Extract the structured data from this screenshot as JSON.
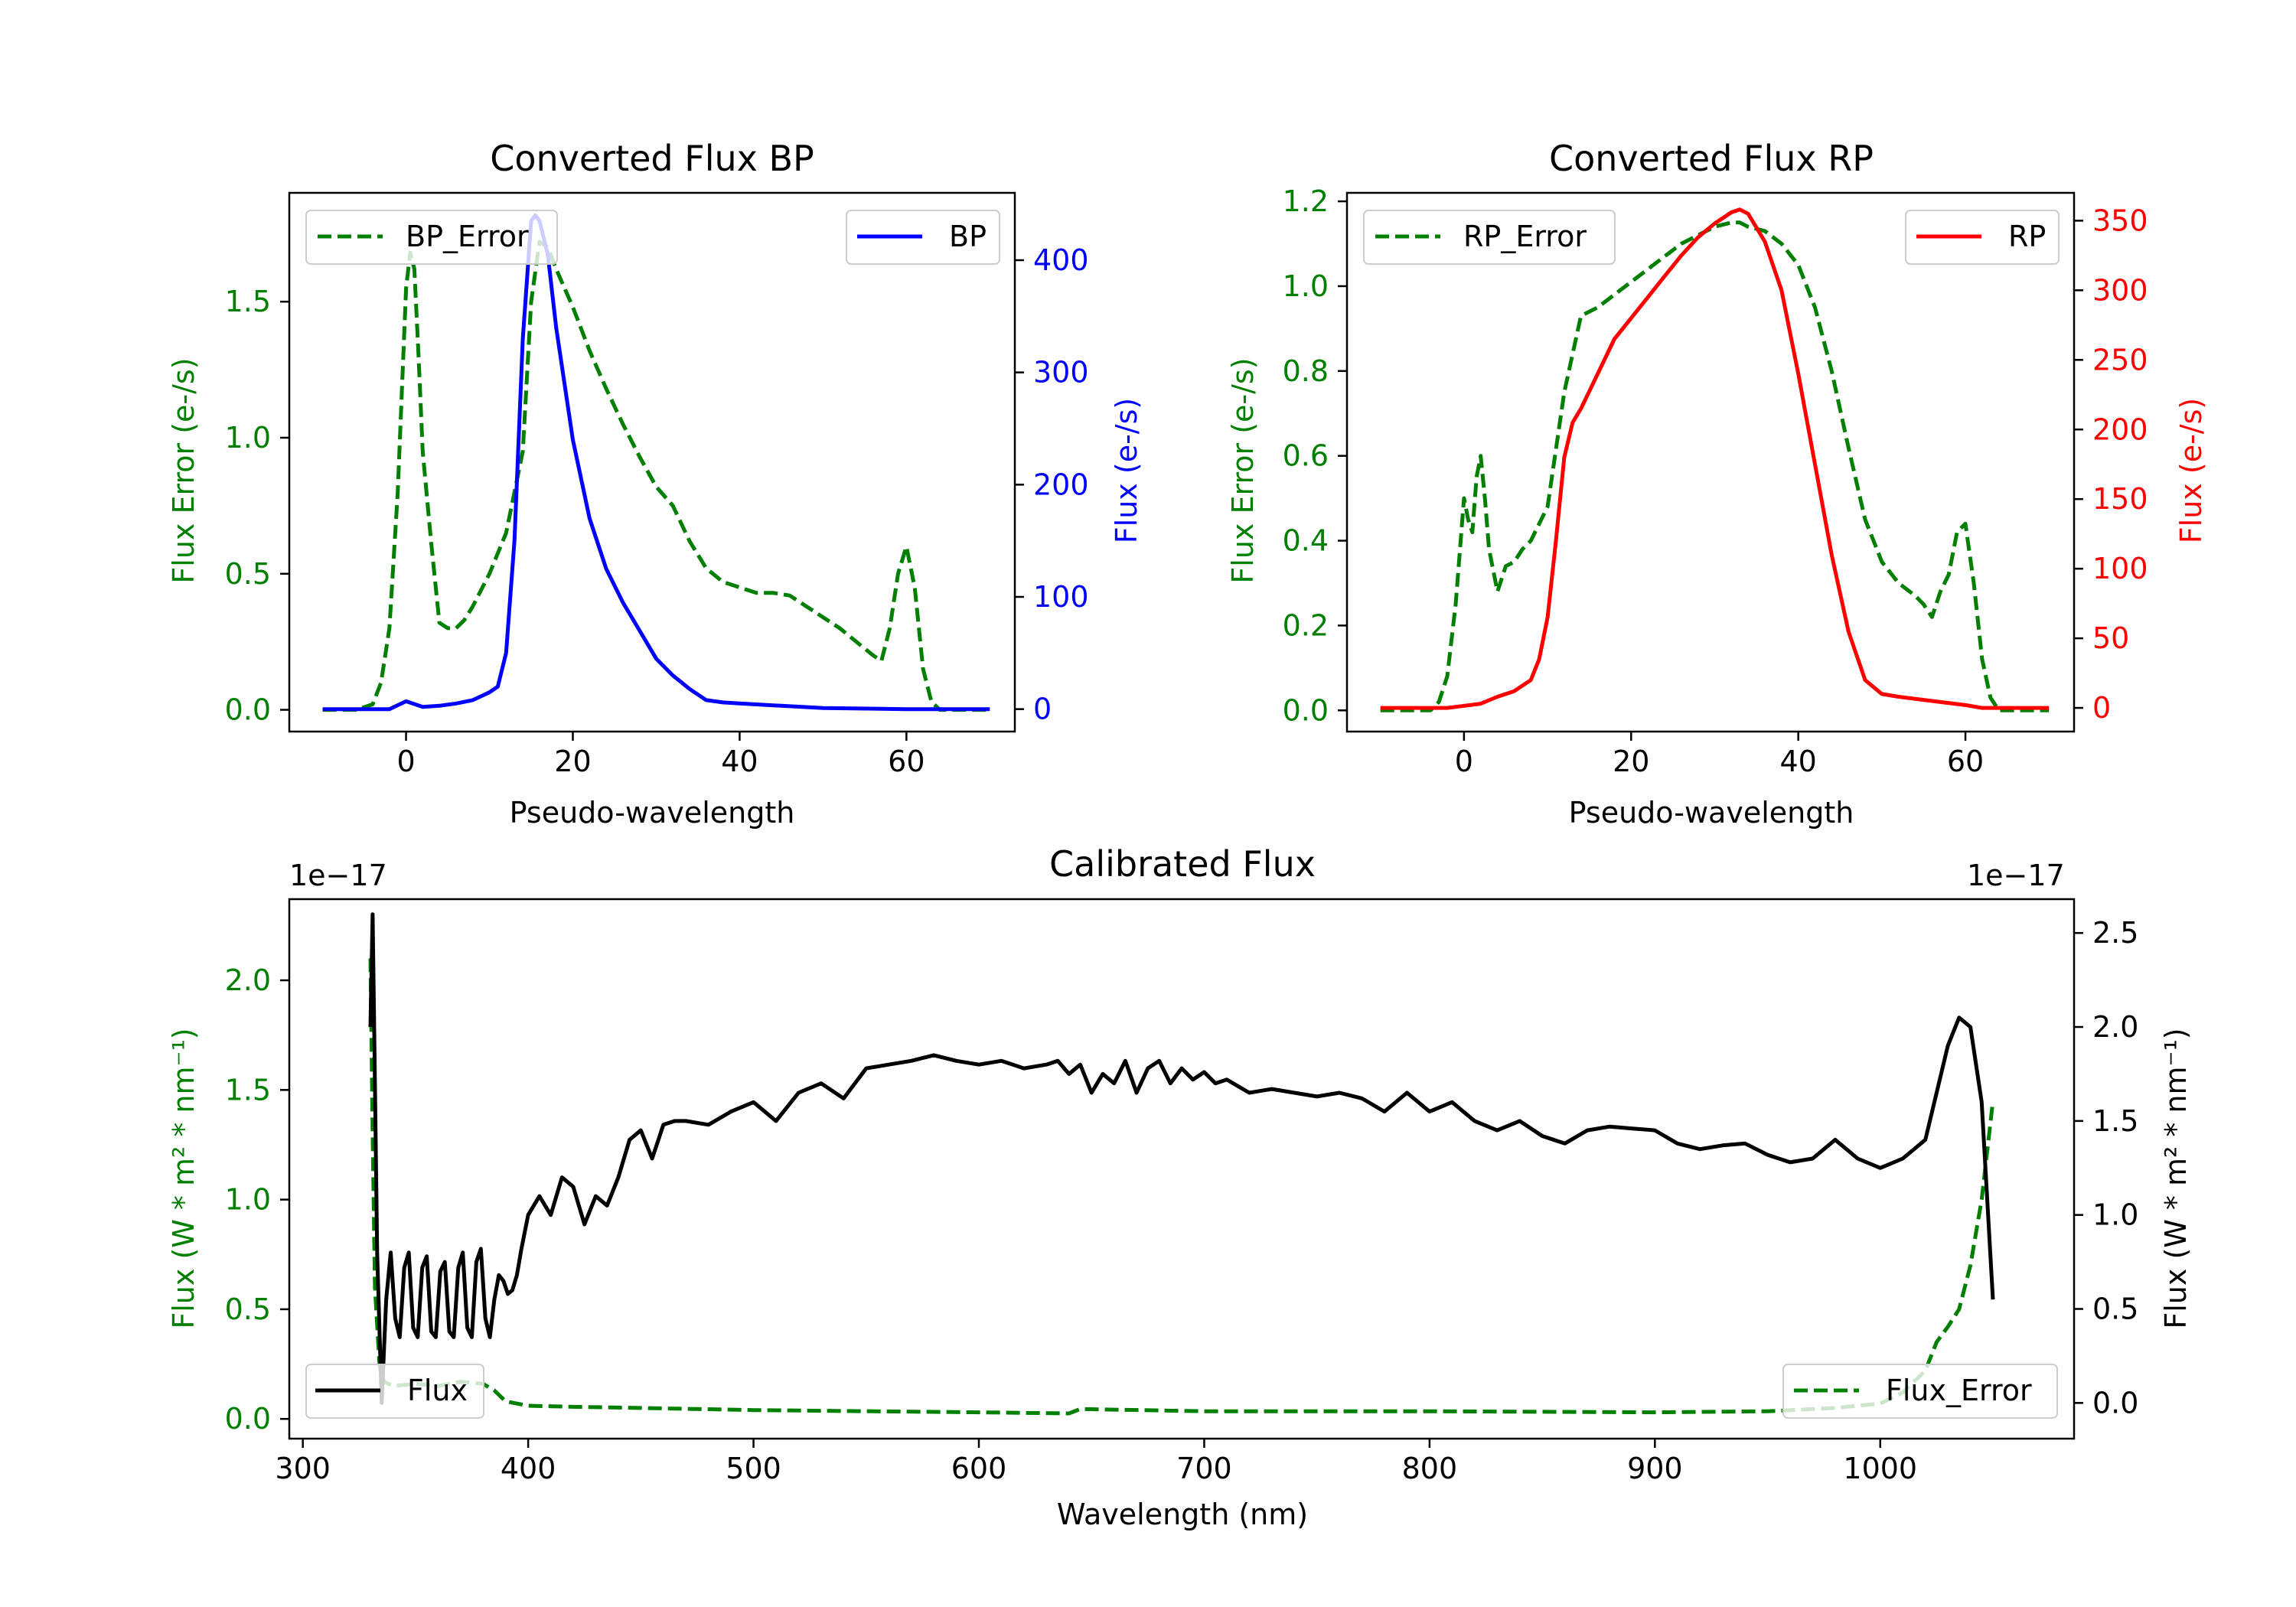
{
  "colors": {
    "bp": "#0000ff",
    "rp": "#ff0000",
    "error": "#007f00",
    "flux": "#000000",
    "frame": "#000000"
  },
  "chart_data": [
    {
      "id": "bp",
      "type": "line",
      "title": "Converted Flux BP",
      "xlabel": "Pseudo-wavelength",
      "ylabel_left": "Flux Error (e-/s)",
      "ylabel_right": "Flux (e-/s)",
      "xlim": [
        -14,
        73
      ],
      "ylim_left": [
        -0.08,
        1.9
      ],
      "ylim_right": [
        -20,
        460
      ],
      "xticks": [
        0,
        20,
        40,
        60
      ],
      "yticks_left": [
        "0.0",
        "0.5",
        "1.0",
        "1.5"
      ],
      "yticks_right": [
        "0",
        "100",
        "200",
        "300",
        "400"
      ],
      "legend_left": "BP_Error",
      "legend_right": "BP",
      "series": [
        {
          "name": "BP_Error",
          "axis": "left",
          "style": "dashed",
          "color_key": "error",
          "x": [
            -10,
            -6,
            -4,
            -3,
            -2,
            -1,
            0,
            0.5,
            1,
            1.5,
            2,
            3,
            4,
            5,
            6,
            7,
            8,
            10,
            12,
            14,
            15,
            16,
            17,
            18,
            20,
            22,
            24,
            26,
            28,
            30,
            32,
            34,
            36,
            38,
            40,
            42,
            44,
            46,
            48,
            50,
            52,
            54,
            56,
            57,
            58,
            59,
            60,
            61,
            62,
            63,
            64,
            65,
            70
          ],
          "y": [
            0.0,
            0.0,
            0.02,
            0.1,
            0.3,
            0.8,
            1.55,
            1.68,
            1.62,
            1.3,
            0.95,
            0.62,
            0.32,
            0.3,
            0.3,
            0.33,
            0.38,
            0.5,
            0.65,
            0.95,
            1.5,
            1.72,
            1.7,
            1.62,
            1.48,
            1.32,
            1.18,
            1.05,
            0.93,
            0.82,
            0.75,
            0.62,
            0.52,
            0.47,
            0.45,
            0.43,
            0.43,
            0.42,
            0.38,
            0.34,
            0.3,
            0.25,
            0.2,
            0.18,
            0.3,
            0.5,
            0.6,
            0.45,
            0.15,
            0.03,
            0.0,
            0.0,
            0.0
          ]
        },
        {
          "name": "BP",
          "axis": "right",
          "style": "solid",
          "color_key": "bp",
          "x": [
            -10,
            -2,
            0,
            2,
            4,
            6,
            8,
            10,
            11,
            12,
            13,
            14,
            15,
            15.5,
            16,
            17,
            18,
            20,
            22,
            24,
            26,
            28,
            30,
            32,
            34,
            36,
            38,
            40,
            45,
            50,
            60,
            70
          ],
          "y": [
            0,
            0,
            7,
            2,
            3,
            5,
            8,
            15,
            20,
            50,
            150,
            330,
            435,
            440,
            435,
            405,
            340,
            240,
            170,
            125,
            95,
            70,
            45,
            30,
            18,
            8,
            6,
            5,
            3,
            1,
            0,
            0
          ]
        }
      ]
    },
    {
      "id": "rp",
      "type": "line",
      "title": "Converted Flux RP",
      "xlabel": "Pseudo-wavelength",
      "ylabel_left": "Flux Error (e-/s)",
      "ylabel_right": "Flux (e-/s)",
      "xlim": [
        -14,
        73
      ],
      "ylim_left": [
        -0.05,
        1.22
      ],
      "ylim_right": [
        -17,
        370
      ],
      "xticks": [
        0,
        20,
        40,
        60
      ],
      "yticks_left": [
        "0.0",
        "0.2",
        "0.4",
        "0.6",
        "0.8",
        "1.0",
        "1.2"
      ],
      "yticks_right": [
        "0",
        "50",
        "100",
        "150",
        "200",
        "250",
        "300",
        "350"
      ],
      "legend_left": "RP_Error",
      "legend_right": "RP",
      "series": [
        {
          "name": "RP_Error",
          "axis": "left",
          "style": "dashed",
          "color_key": "error",
          "x": [
            -10,
            -4,
            -3,
            -2,
            -1,
            0,
            0.5,
            1,
            1.5,
            2,
            2.5,
            3,
            4,
            5,
            6,
            7,
            8,
            10,
            12,
            14,
            16,
            18,
            20,
            22,
            24,
            26,
            28,
            30,
            32,
            33,
            34,
            36,
            38,
            40,
            42,
            44,
            46,
            48,
            50,
            52,
            54,
            55,
            56,
            57,
            58,
            59,
            60,
            61,
            62,
            63,
            64,
            66,
            70
          ],
          "y": [
            0.0,
            0.0,
            0.02,
            0.08,
            0.25,
            0.5,
            0.45,
            0.42,
            0.55,
            0.6,
            0.5,
            0.38,
            0.28,
            0.34,
            0.35,
            0.38,
            0.4,
            0.48,
            0.75,
            0.93,
            0.95,
            0.98,
            1.01,
            1.04,
            1.07,
            1.1,
            1.12,
            1.14,
            1.15,
            1.15,
            1.14,
            1.13,
            1.1,
            1.05,
            0.95,
            0.8,
            0.62,
            0.45,
            0.35,
            0.3,
            0.27,
            0.25,
            0.22,
            0.28,
            0.32,
            0.42,
            0.44,
            0.3,
            0.12,
            0.03,
            0.0,
            0.0,
            0.0
          ]
        },
        {
          "name": "RP",
          "axis": "right",
          "style": "solid",
          "color_key": "rp",
          "x": [
            -10,
            -2,
            2,
            4,
            6,
            8,
            9,
            10,
            11,
            12,
            13,
            14,
            16,
            18,
            20,
            22,
            24,
            26,
            28,
            30,
            32,
            33,
            34,
            36,
            38,
            40,
            42,
            44,
            46,
            48,
            50,
            52,
            56,
            60,
            62,
            70
          ],
          "y": [
            0,
            0,
            3,
            8,
            12,
            20,
            35,
            65,
            120,
            180,
            205,
            215,
            240,
            265,
            280,
            295,
            310,
            325,
            338,
            348,
            356,
            358,
            355,
            335,
            300,
            240,
            175,
            110,
            55,
            20,
            10,
            8,
            5,
            2,
            0,
            0
          ]
        }
      ]
    },
    {
      "id": "cal",
      "type": "line",
      "title": "Calibrated Flux",
      "xlabel": "Wavelength (nm)",
      "ylabel_left": "Flux (W * m² * nm⁻¹)",
      "ylabel_right": "Flux (W * m² * nm⁻¹)",
      "offset_left": "1e−17",
      "offset_right": "1e−17",
      "xlim": [
        294,
        1086
      ],
      "ylim_left": [
        -0.09,
        2.37
      ],
      "ylim_right": [
        -0.19,
        2.68
      ],
      "xticks": [
        300,
        400,
        500,
        600,
        700,
        800,
        900,
        1000
      ],
      "yticks_left": [
        "0.0",
        "0.5",
        "1.0",
        "1.5",
        "2.0"
      ],
      "yticks_right": [
        "0.0",
        "0.5",
        "1.0",
        "1.5",
        "2.0",
        "2.5"
      ],
      "legend_left": "Flux",
      "legend_right": "Flux_Error",
      "series": [
        {
          "name": "Flux_Error",
          "axis": "left",
          "style": "dashed",
          "color_key": "error",
          "x": [
            330,
            331,
            332,
            334,
            336,
            340,
            350,
            360,
            370,
            380,
            385,
            390,
            400,
            420,
            450,
            500,
            600,
            640,
            645,
            700,
            800,
            900,
            950,
            980,
            1000,
            1010,
            1020,
            1025,
            1030,
            1035,
            1040,
            1045,
            1050
          ],
          "y": [
            2.1,
            1.3,
            0.6,
            0.25,
            0.17,
            0.15,
            0.16,
            0.15,
            0.17,
            0.16,
            0.13,
            0.08,
            0.06,
            0.055,
            0.05,
            0.04,
            0.03,
            0.025,
            0.045,
            0.035,
            0.035,
            0.03,
            0.035,
            0.05,
            0.07,
            0.12,
            0.22,
            0.35,
            0.42,
            0.5,
            0.7,
            1.0,
            1.45
          ]
        },
        {
          "name": "Flux",
          "axis": "right",
          "style": "solid",
          "color_key": "flux",
          "x": [
            330,
            331,
            332,
            333,
            335,
            337,
            339,
            341,
            343,
            345,
            347,
            349,
            351,
            353,
            355,
            357,
            359,
            361,
            363,
            365,
            367,
            369,
            371,
            373,
            375,
            377,
            379,
            381,
            383,
            385,
            387,
            389,
            391,
            393,
            395,
            397,
            400,
            405,
            410,
            415,
            420,
            425,
            430,
            435,
            440,
            445,
            450,
            455,
            460,
            465,
            470,
            480,
            490,
            500,
            510,
            520,
            530,
            540,
            550,
            560,
            570,
            580,
            590,
            600,
            610,
            620,
            630,
            635,
            640,
            645,
            650,
            655,
            660,
            665,
            670,
            675,
            680,
            685,
            690,
            695,
            700,
            705,
            710,
            720,
            730,
            740,
            750,
            760,
            770,
            780,
            790,
            800,
            810,
            820,
            830,
            840,
            850,
            860,
            870,
            880,
            890,
            900,
            910,
            920,
            930,
            940,
            950,
            960,
            970,
            980,
            990,
            1000,
            1010,
            1020,
            1030,
            1035,
            1040,
            1045,
            1050
          ],
          "y": [
            2.0,
            2.6,
            1.7,
            0.8,
            0.0,
            0.55,
            0.8,
            0.45,
            0.35,
            0.72,
            0.8,
            0.4,
            0.35,
            0.72,
            0.78,
            0.38,
            0.35,
            0.7,
            0.75,
            0.38,
            0.35,
            0.72,
            0.8,
            0.4,
            0.35,
            0.75,
            0.82,
            0.45,
            0.35,
            0.55,
            0.68,
            0.65,
            0.58,
            0.6,
            0.68,
            0.82,
            1.0,
            1.1,
            1.0,
            1.2,
            1.15,
            0.95,
            1.1,
            1.05,
            1.2,
            1.4,
            1.45,
            1.3,
            1.48,
            1.5,
            1.5,
            1.48,
            1.55,
            1.6,
            1.5,
            1.65,
            1.7,
            1.62,
            1.78,
            1.8,
            1.82,
            1.85,
            1.82,
            1.8,
            1.82,
            1.78,
            1.8,
            1.82,
            1.75,
            1.8,
            1.65,
            1.75,
            1.7,
            1.82,
            1.65,
            1.78,
            1.82,
            1.7,
            1.78,
            1.72,
            1.76,
            1.7,
            1.72,
            1.65,
            1.67,
            1.65,
            1.63,
            1.65,
            1.62,
            1.55,
            1.65,
            1.55,
            1.6,
            1.5,
            1.45,
            1.5,
            1.42,
            1.38,
            1.45,
            1.47,
            1.46,
            1.45,
            1.38,
            1.35,
            1.37,
            1.38,
            1.32,
            1.28,
            1.3,
            1.4,
            1.3,
            1.25,
            1.3,
            1.4,
            1.9,
            2.05,
            2.0,
            1.6,
            0.55
          ]
        }
      ]
    }
  ]
}
